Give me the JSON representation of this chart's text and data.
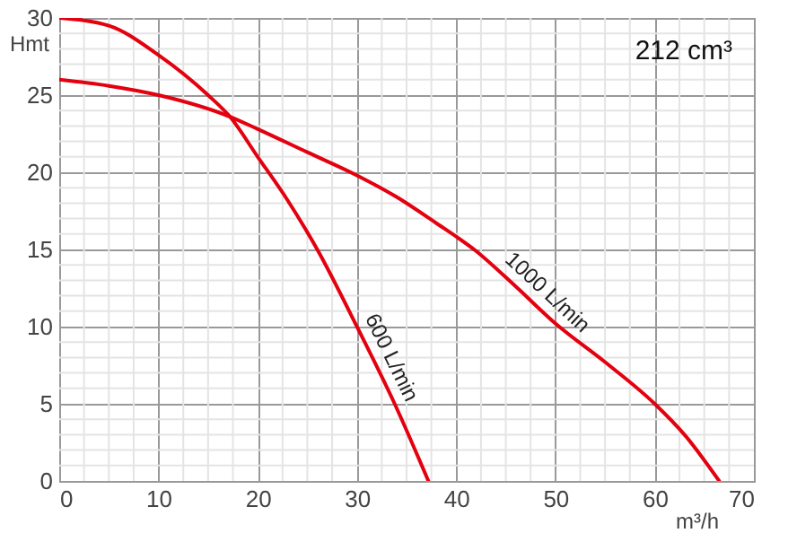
{
  "chart_data": {
    "type": "line",
    "xlabel": "m³/h",
    "ylabel": "Hmt",
    "annotations": [
      "212 cm³"
    ],
    "xlim": [
      0,
      70
    ],
    "ylim": [
      0,
      30
    ],
    "xticks": [
      0,
      {
        "value": 2.5,
        "label": null
      },
      {
        "value": 5,
        "label": null
      },
      {
        "value": 7.5,
        "label": null
      },
      10,
      {
        "value": 12.5,
        "label": null
      },
      {
        "value": 15,
        "label": null
      },
      {
        "value": 17.5,
        "label": null
      },
      20,
      {
        "value": 22.5,
        "label": null
      },
      {
        "value": 25,
        "label": null
      },
      {
        "value": 27.5,
        "label": null
      },
      30,
      {
        "value": 32.5,
        "label": null
      },
      {
        "value": 35,
        "label": null
      },
      {
        "value": 37.5,
        "label": null
      },
      40,
      {
        "value": 42.5,
        "label": null
      },
      {
        "value": 45,
        "label": null
      },
      {
        "value": 47.5,
        "label": null
      },
      50,
      {
        "value": 52.5,
        "label": null
      },
      {
        "value": 55,
        "label": null
      },
      {
        "value": 57.5,
        "label": null
      },
      60,
      {
        "value": 62.5,
        "label": null
      },
      {
        "value": 65,
        "label": null
      },
      {
        "value": 67.5,
        "label": null
      },
      70
    ],
    "yticks": [
      0,
      {
        "value": 1,
        "label": null
      },
      {
        "value": 2,
        "label": null
      },
      {
        "value": 3,
        "label": null
      },
      {
        "value": 4,
        "label": null
      },
      5,
      {
        "value": 6,
        "label": null
      },
      {
        "value": 7,
        "label": null
      },
      {
        "value": 8,
        "label": null
      },
      {
        "value": 9,
        "label": null
      },
      10,
      {
        "value": 11,
        "label": null
      },
      {
        "value": 12,
        "label": null
      },
      {
        "value": 13,
        "label": null
      },
      {
        "value": 14,
        "label": null
      },
      15,
      {
        "value": 16,
        "label": null
      },
      {
        "value": 17,
        "label": null
      },
      {
        "value": 18,
        "label": null
      },
      {
        "value": 19,
        "label": null
      },
      20,
      {
        "value": 21,
        "label": null
      },
      {
        "value": 22,
        "label": null
      },
      {
        "value": 23,
        "label": null
      },
      {
        "value": 24,
        "label": null
      },
      25,
      {
        "value": 26,
        "label": null
      },
      {
        "value": 27,
        "label": null
      },
      {
        "value": 28,
        "label": null
      },
      {
        "value": 29,
        "label": null
      },
      30
    ],
    "grid": true,
    "marker": "none",
    "line_style": "solid",
    "series": [
      {
        "name": "600 L/min",
        "color": "#e3000f",
        "x": [
          0,
          5,
          10,
          15,
          17.2,
          20,
          23,
          26,
          30,
          33.8,
          37.2
        ],
        "values": [
          30,
          29.5,
          27.6,
          25,
          23.6,
          21,
          18.2,
          15,
          10,
          5,
          0
        ]
      },
      {
        "name": "1000 L/min",
        "color": "#e3000f",
        "x": [
          0,
          5,
          10,
          17.2,
          20,
          25,
          30,
          34,
          38,
          42,
          46,
          50,
          55,
          60,
          63,
          66.5
        ],
        "values": [
          26,
          25.6,
          25,
          23.6,
          22.8,
          21.3,
          19.8,
          18.4,
          16.7,
          14.9,
          12.6,
          10.2,
          7.7,
          5,
          3,
          0
        ]
      }
    ]
  }
}
